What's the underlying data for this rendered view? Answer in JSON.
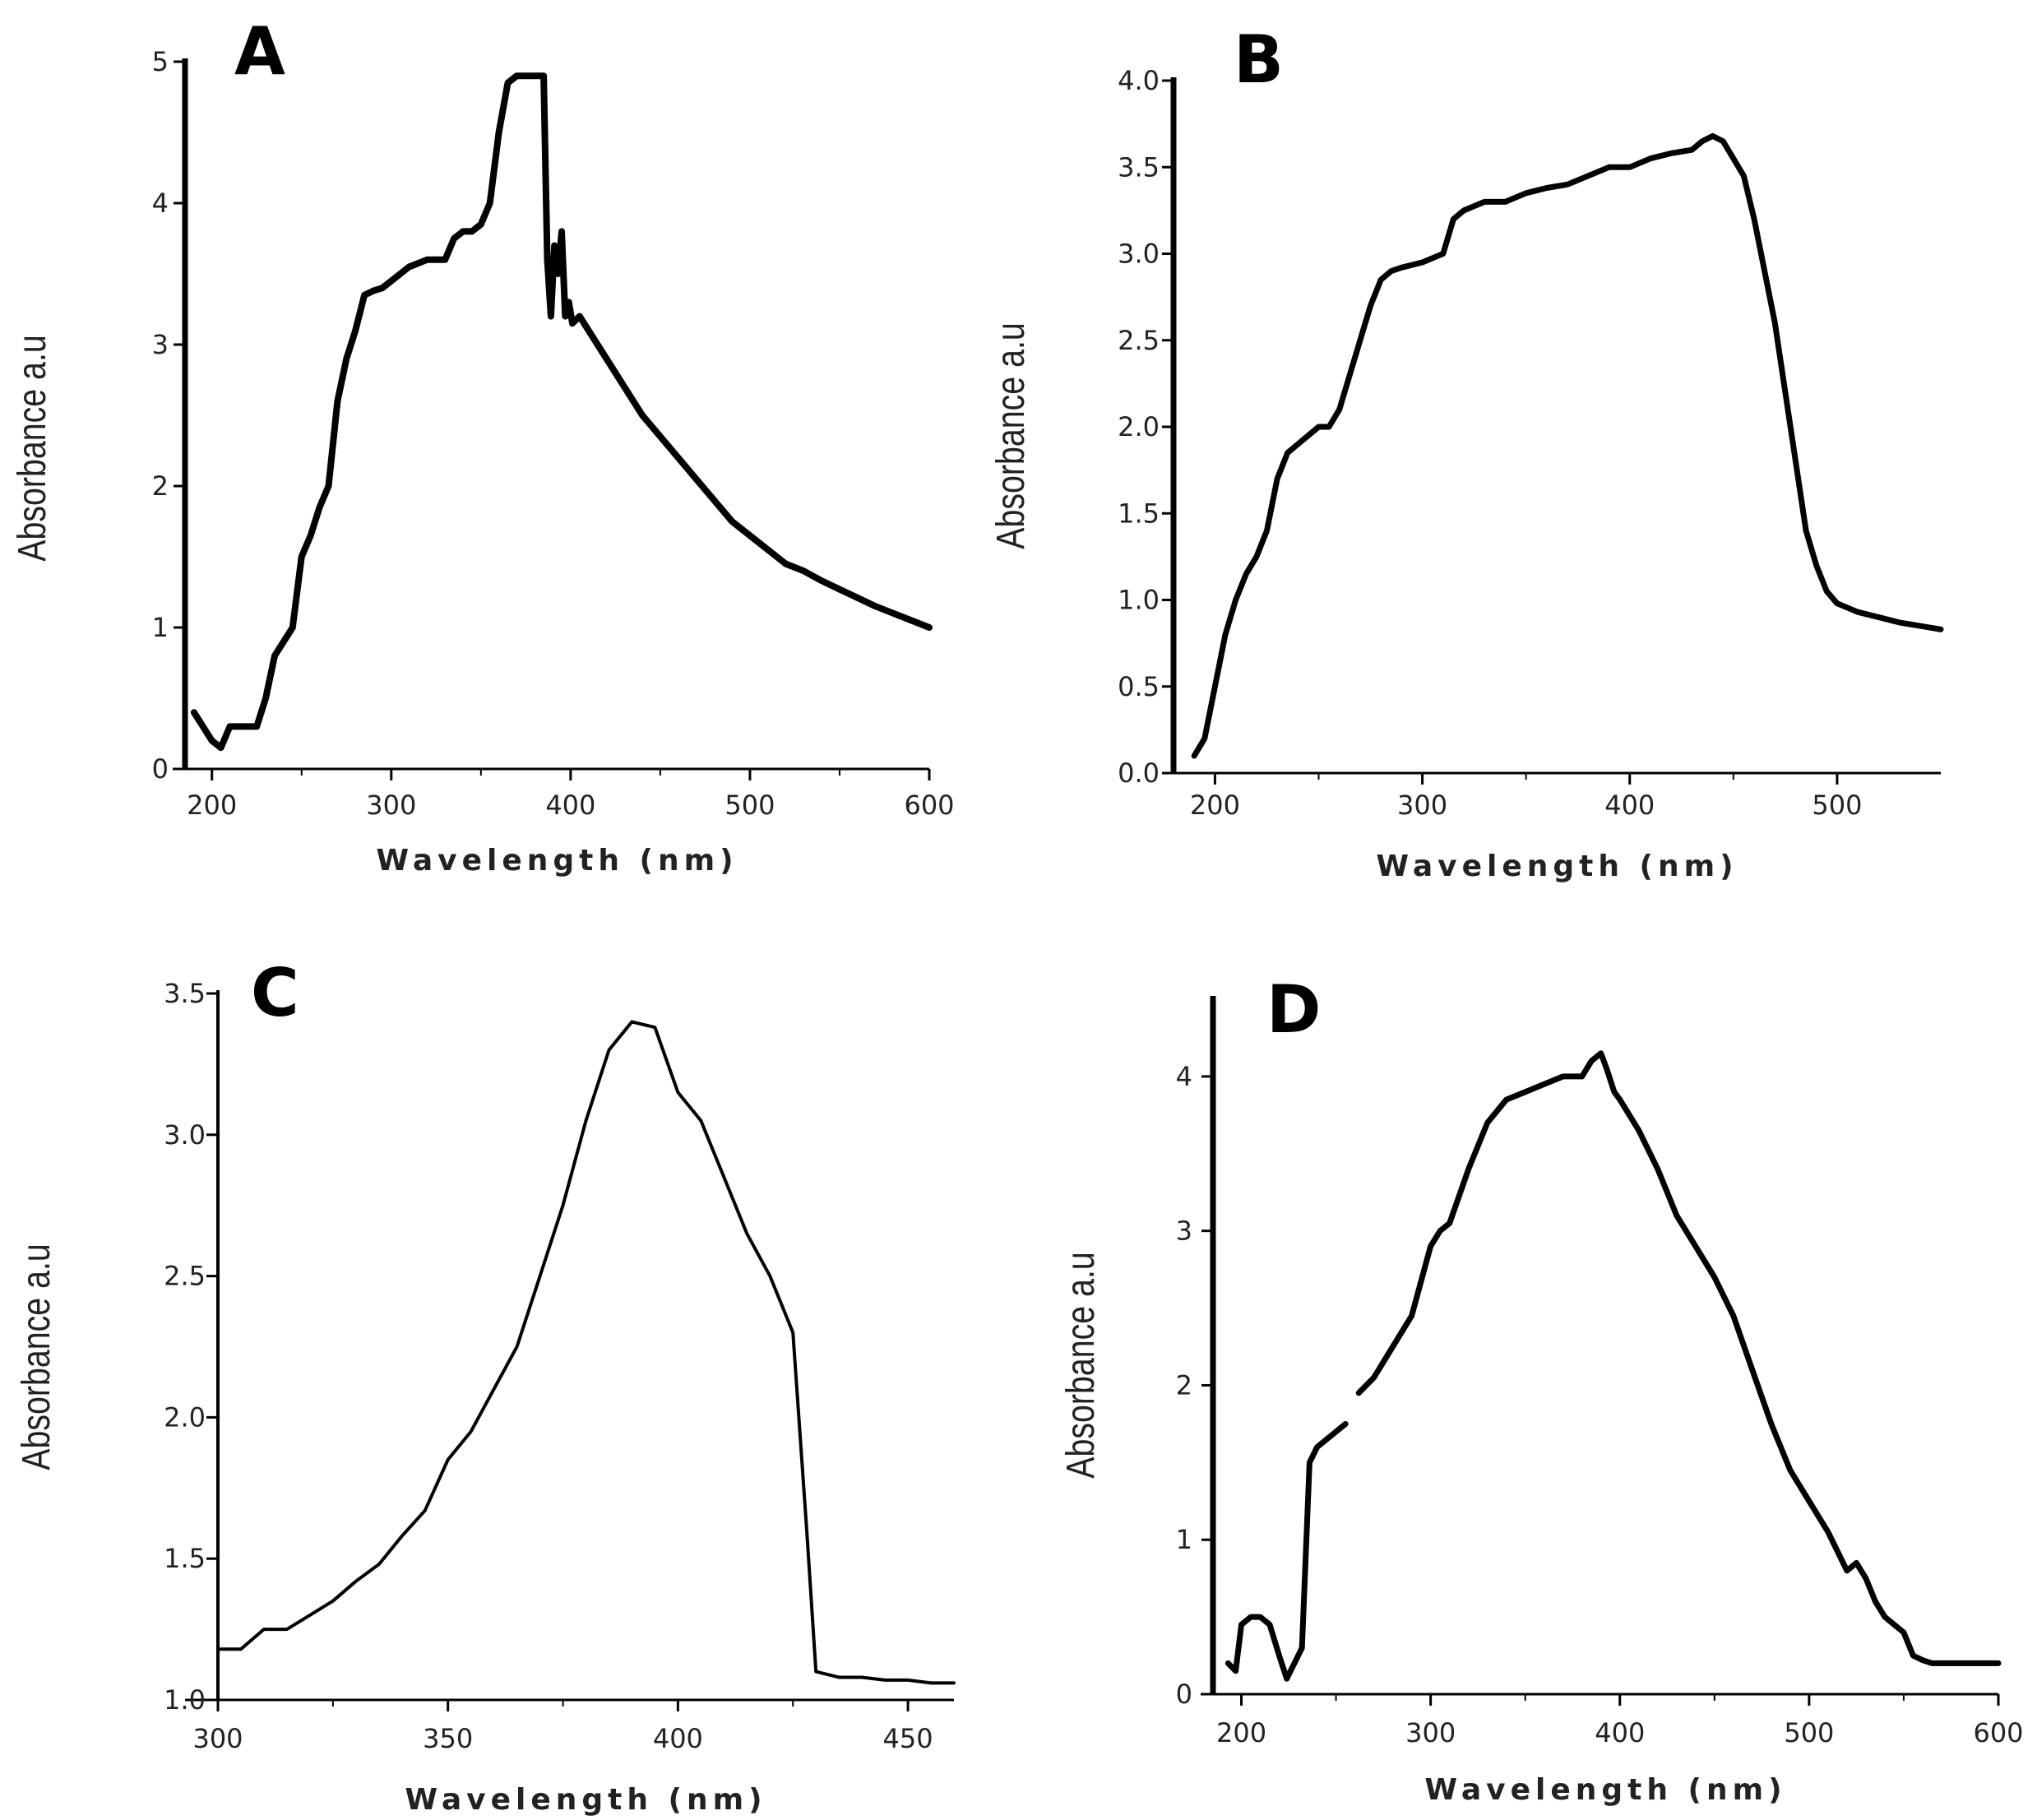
{
  "chart_data": [
    {
      "panel": "A",
      "type": "line",
      "xlabel": "Wavelength (nm)",
      "ylabel": "Absorbance a.u",
      "xlim": [
        185,
        600
      ],
      "ylim": [
        0,
        5
      ],
      "xticks": [
        200,
        300,
        400,
        500,
        600
      ],
      "yticks": [
        0,
        1,
        2,
        3,
        4,
        5
      ],
      "ytick_labels": [
        "0",
        "1",
        "2",
        "3",
        "4",
        "5"
      ],
      "line_width": 8,
      "series": [
        {
          "x": [
            190,
            195,
            200,
            205,
            210,
            215,
            225,
            230,
            235,
            240,
            245,
            250,
            255,
            260,
            265,
            270,
            275,
            280,
            285,
            290,
            295,
            300,
            305,
            310,
            320,
            330,
            335,
            340,
            345,
            350,
            355,
            360,
            365,
            370,
            375,
            380,
            385,
            387,
            389,
            391,
            393,
            395,
            397,
            399,
            401,
            405,
            410,
            420,
            430,
            440,
            450,
            460,
            470,
            480,
            490,
            500,
            510,
            520,
            530,
            540,
            550,
            560,
            570,
            580,
            590,
            600
          ],
          "y": [
            0.4,
            0.3,
            0.2,
            0.15,
            0.3,
            0.3,
            0.3,
            0.5,
            0.8,
            0.9,
            1.0,
            1.5,
            1.65,
            1.85,
            2.0,
            2.6,
            2.9,
            3.1,
            3.35,
            3.38,
            3.4,
            3.45,
            3.5,
            3.55,
            3.6,
            3.6,
            3.75,
            3.8,
            3.8,
            3.85,
            4.0,
            4.5,
            4.85,
            4.9,
            4.9,
            4.9,
            4.9,
            3.6,
            3.2,
            3.7,
            3.5,
            3.8,
            3.2,
            3.3,
            3.15,
            3.2,
            3.1,
            2.9,
            2.7,
            2.5,
            2.35,
            2.2,
            2.05,
            1.9,
            1.75,
            1.65,
            1.55,
            1.45,
            1.4,
            1.33,
            1.27,
            1.21,
            1.15,
            1.1,
            1.05,
            1.0
          ]
        }
      ]
    },
    {
      "panel": "B",
      "type": "line",
      "xlabel": "Wavelength (nm)",
      "ylabel": "Absorbance a.u",
      "xlim": [
        180,
        550
      ],
      "ylim": [
        0,
        4
      ],
      "xticks": [
        200,
        300,
        400,
        500
      ],
      "yticks": [
        0,
        0.5,
        1,
        1.5,
        2,
        2.5,
        3,
        3.5,
        4
      ],
      "ytick_labels": [
        "0.0",
        "0.5",
        "1.0",
        "1.5",
        "2.0",
        "2.5",
        "3.0",
        "3.5",
        "4.0"
      ],
      "line_width": 7,
      "series": [
        {
          "x": [
            190,
            195,
            200,
            205,
            210,
            215,
            220,
            225,
            230,
            235,
            240,
            245,
            250,
            255,
            260,
            265,
            270,
            275,
            280,
            285,
            290,
            300,
            310,
            315,
            320,
            330,
            340,
            350,
            360,
            370,
            380,
            390,
            400,
            410,
            420,
            430,
            435,
            440,
            445,
            450,
            455,
            460,
            465,
            470,
            475,
            480,
            485,
            490,
            495,
            500,
            510,
            520,
            530,
            540,
            550
          ],
          "y": [
            0.1,
            0.2,
            0.5,
            0.8,
            1.0,
            1.15,
            1.25,
            1.4,
            1.7,
            1.85,
            1.9,
            1.95,
            2.0,
            2.0,
            2.1,
            2.3,
            2.5,
            2.7,
            2.85,
            2.9,
            2.92,
            2.95,
            3.0,
            3.2,
            3.25,
            3.3,
            3.3,
            3.35,
            3.38,
            3.4,
            3.45,
            3.5,
            3.5,
            3.55,
            3.58,
            3.6,
            3.65,
            3.68,
            3.65,
            3.55,
            3.45,
            3.2,
            2.9,
            2.6,
            2.2,
            1.8,
            1.4,
            1.2,
            1.05,
            0.98,
            0.93,
            0.9,
            0.87,
            0.85,
            0.83
          ]
        }
      ]
    },
    {
      "panel": "C",
      "type": "line",
      "xlabel": "Wavelength (nm)",
      "ylabel": "Absorbance a.u",
      "xlim": [
        300,
        460
      ],
      "ylim": [
        1,
        3.5
      ],
      "xticks": [
        300,
        350,
        400,
        450
      ],
      "yticks": [
        1,
        1.5,
        2,
        2.5,
        3,
        3.5
      ],
      "ytick_labels": [
        "1.0",
        "1.5",
        "2.0",
        "2.5",
        "3.0",
        "3.5"
      ],
      "line_width": 4,
      "series": [
        {
          "x": [
            300,
            305,
            310,
            315,
            320,
            325,
            330,
            335,
            340,
            345,
            350,
            355,
            360,
            365,
            370,
            375,
            380,
            385,
            390,
            395,
            400,
            405,
            410,
            415,
            420,
            425,
            428,
            430,
            435,
            440,
            445,
            450,
            455,
            460
          ],
          "y": [
            1.18,
            1.18,
            1.25,
            1.25,
            1.3,
            1.35,
            1.42,
            1.48,
            1.58,
            1.67,
            1.85,
            1.95,
            2.1,
            2.25,
            2.5,
            2.75,
            3.05,
            3.3,
            3.4,
            3.38,
            3.15,
            3.05,
            2.85,
            2.65,
            2.5,
            2.3,
            1.6,
            1.1,
            1.08,
            1.08,
            1.07,
            1.07,
            1.06,
            1.06
          ]
        }
      ]
    },
    {
      "panel": "D",
      "type": "line",
      "xlabel": "Wavelength (nm)",
      "ylabel": "Absorbance a.u",
      "xlim": [
        185,
        600
      ],
      "ylim": [
        0,
        4.5
      ],
      "xticks": [
        200,
        300,
        400,
        500,
        600
      ],
      "yticks": [
        0,
        1,
        2,
        3,
        4
      ],
      "ytick_labels": [
        "0",
        "1",
        "2",
        "3",
        "4"
      ],
      "line_width": 7,
      "series": [
        {
          "x": [
            193,
            197,
            200,
            205,
            210,
            215,
            220,
            224,
            228,
            232,
            236,
            240,
            245,
            250,
            255
          ],
          "y": [
            0.2,
            0.15,
            0.45,
            0.5,
            0.5,
            0.45,
            0.25,
            0.1,
            0.2,
            0.3,
            1.5,
            1.6,
            1.65,
            1.7,
            1.75
          ]
        },
        {
          "x": [
            262,
            270,
            280,
            290,
            300,
            305,
            310,
            320,
            330,
            340,
            350,
            360,
            370,
            380,
            385,
            390,
            393,
            397,
            400,
            410,
            420,
            430,
            440,
            450,
            460,
            470,
            480,
            490,
            500,
            510,
            520,
            525,
            530,
            535,
            540,
            550,
            555,
            560,
            565,
            570,
            580,
            590,
            600
          ],
          "y": [
            1.95,
            2.05,
            2.25,
            2.45,
            2.9,
            3.0,
            3.05,
            3.4,
            3.7,
            3.85,
            3.9,
            3.95,
            4.0,
            4.0,
            4.1,
            4.15,
            4.05,
            3.9,
            3.85,
            3.65,
            3.4,
            3.1,
            2.9,
            2.7,
            2.45,
            2.1,
            1.75,
            1.45,
            1.25,
            1.05,
            0.8,
            0.85,
            0.75,
            0.6,
            0.5,
            0.4,
            0.25,
            0.22,
            0.2,
            0.2,
            0.2,
            0.2,
            0.2
          ]
        }
      ]
    }
  ]
}
